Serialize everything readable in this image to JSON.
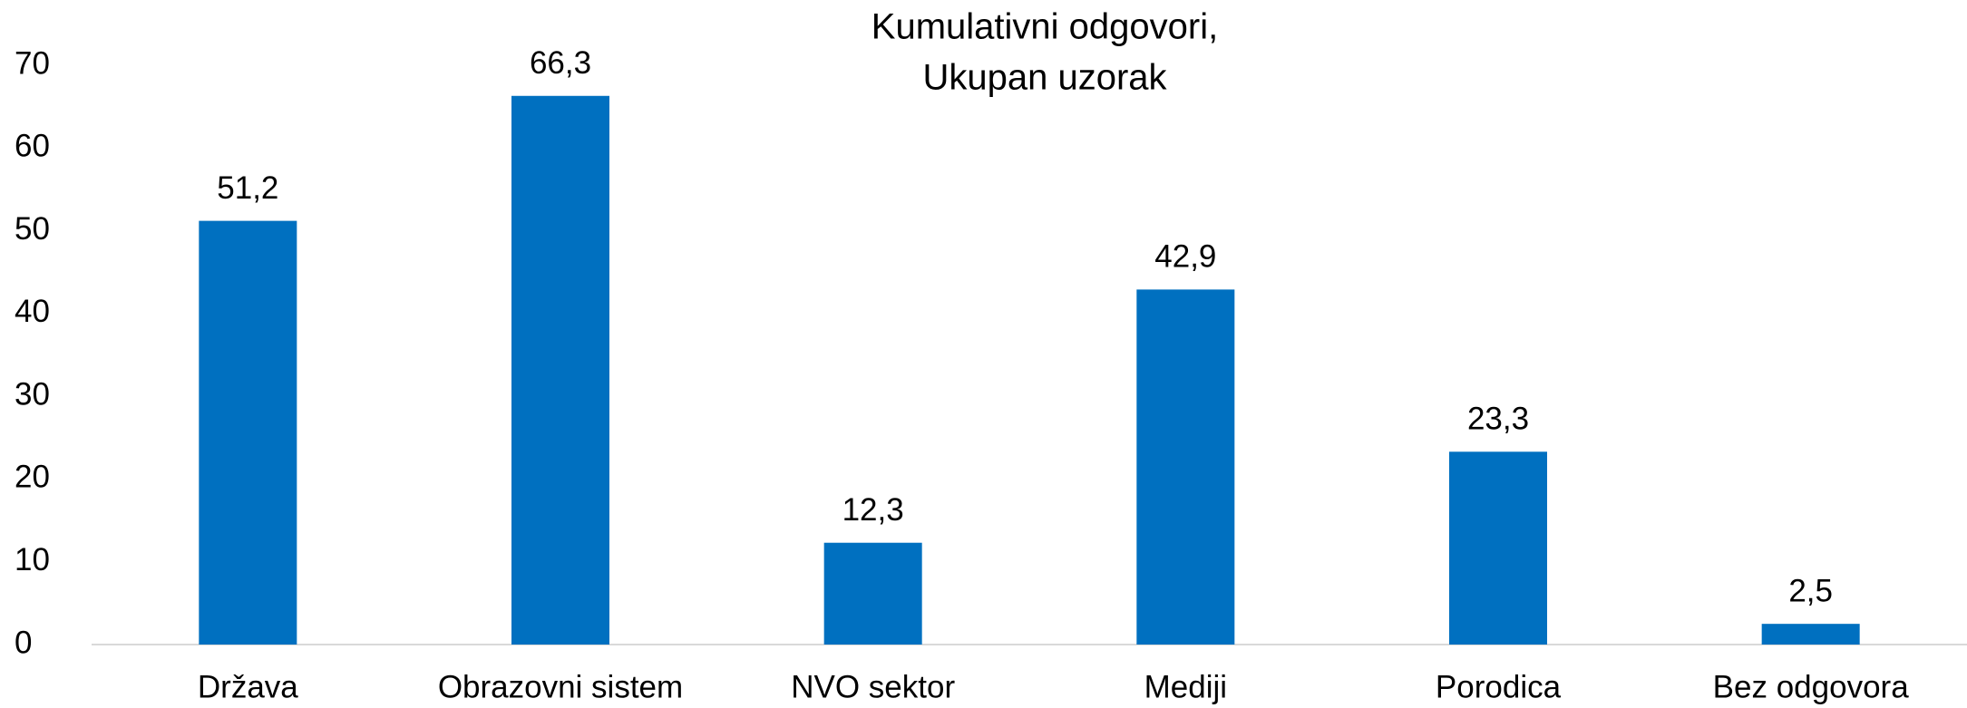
{
  "chart_data": {
    "type": "bar",
    "title": [
      "Kumulativni odgovori,",
      "Ukupan uzorak"
    ],
    "categories": [
      "Država",
      "Obrazovni sistem",
      "NVO sektor",
      "Mediji",
      "Porodica",
      "Bez odgovora"
    ],
    "values": [
      51.2,
      66.3,
      12.3,
      42.9,
      23.3,
      2.5
    ],
    "value_labels": [
      "51,2",
      "66,3",
      "12,3",
      "42,9",
      "23,3",
      "2,5"
    ],
    "color": "#0070c0",
    "ylim": [
      0,
      70
    ],
    "yticks": [
      0,
      10,
      20,
      30,
      40,
      50,
      60,
      70
    ],
    "grid": false
  }
}
